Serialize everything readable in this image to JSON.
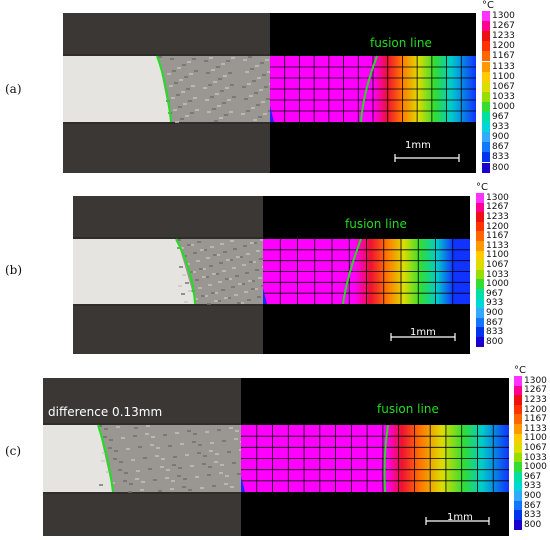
{
  "panels": [
    {
      "label": "(a)",
      "fusion_label": "fusion line",
      "scale_label": "1mm",
      "annotation": ""
    },
    {
      "label": "(b)",
      "fusion_label": "fusion line",
      "scale_label": "1mm",
      "annotation": ""
    },
    {
      "label": "(c)",
      "fusion_label": "fusion line",
      "scale_label": "1mm",
      "annotation": "difference 0.13mm"
    }
  ],
  "colorbar": {
    "unit": "°C",
    "ticks": [
      "1300",
      "1267",
      "1233",
      "1200",
      "1167",
      "1133",
      "1100",
      "1067",
      "1033",
      "1000",
      "967",
      "933",
      "900",
      "867",
      "833",
      "800"
    ],
    "colors": [
      "#ff33ff",
      "#ff0090",
      "#ee1111",
      "#ff3300",
      "#ff6600",
      "#ff9900",
      "#ffcc00",
      "#dddd00",
      "#99dd00",
      "#33dd33",
      "#00e0a0",
      "#00d8d8",
      "#33aaff",
      "#1177ff",
      "#0033ee",
      "#1a00cc"
    ]
  },
  "colors": {
    "background": "#000000",
    "fusion_line": "#22dd22",
    "mesh_base": "#ff00ff"
  }
}
